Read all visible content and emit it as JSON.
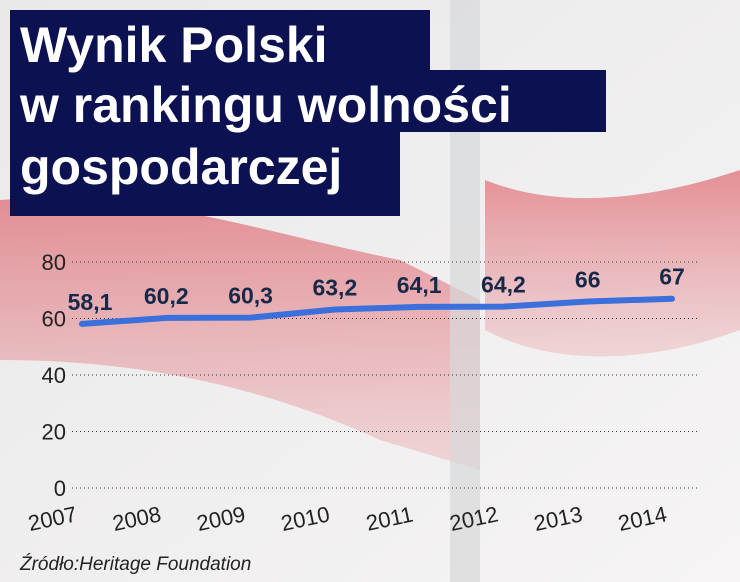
{
  "chart_data": {
    "type": "line",
    "title_lines": [
      "Wynik Polski",
      "w rankingu wolności",
      "gospodarczej"
    ],
    "categories": [
      "2007",
      "2008",
      "2009",
      "2010",
      "2011",
      "2012",
      "2013",
      "2014"
    ],
    "values": [
      58.1,
      60.2,
      60.3,
      63.2,
      64.1,
      64.2,
      66,
      67
    ],
    "value_labels": [
      "58,1",
      "60,2",
      "60,3",
      "63,2",
      "64,1",
      "64,2",
      "66",
      "67"
    ],
    "color": "#3b6fdc",
    "ylim": [
      0,
      80
    ],
    "yticks": [
      0,
      20,
      40,
      60,
      80
    ],
    "grid": true,
    "source": "Źródło:Heritage Foundation"
  }
}
